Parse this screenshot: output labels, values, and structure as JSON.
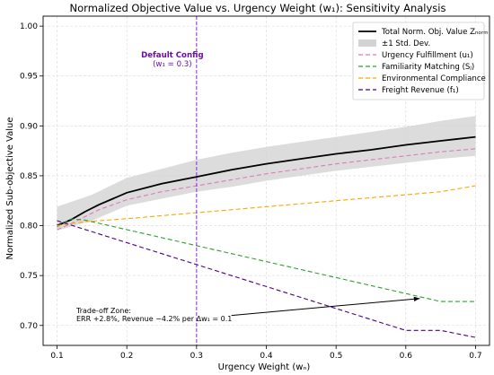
{
  "chart_data": {
    "type": "line",
    "title": "Normalized Objective Value vs. Urgency Weight (w₁): Sensitivity Analysis",
    "xlabel": "Urgency Weight (wₙ)",
    "ylabel": "Normalized Sub-objective Value",
    "xlim": [
      0.08,
      0.72
    ],
    "ylim": [
      0.68,
      1.01
    ],
    "x_ticks": [
      "0.1",
      "0.2",
      "0.3",
      "0.4",
      "0.5",
      "0.6",
      "0.7"
    ],
    "y_ticks": [
      "0.70",
      "0.75",
      "0.80",
      "0.85",
      "0.90",
      "0.95",
      "1.00"
    ],
    "grid": true,
    "legend_position": "top-right",
    "legend": [
      {
        "label": "Total Norm. Obj. Value Zₙₒᵣₘ",
        "style": "solid",
        "color": "#000000"
      },
      {
        "label": "±1 Std. Dev.",
        "style": "band",
        "color": "#d3d3d3"
      },
      {
        "label": "Urgency Fulfillment (u₁)",
        "style": "dashed",
        "color": "#e377c2"
      },
      {
        "label": "Familiarity Matching (Sⱼ)",
        "style": "dashed",
        "color": "#2ca02c"
      },
      {
        "label": "Environmental Compliance",
        "style": "dashed",
        "color": "#ffa500"
      },
      {
        "label": "Freight Revenue (f₁)",
        "style": "dashed",
        "color": "#4b0082"
      }
    ],
    "x": [
      0.1,
      0.12,
      0.14,
      0.16,
      0.18,
      0.2,
      0.25,
      0.3,
      0.35,
      0.4,
      0.45,
      0.5,
      0.55,
      0.6,
      0.65,
      0.7
    ],
    "series": [
      {
        "name": "Total Norm. Obj. Value",
        "color": "#000000",
        "style": "solid",
        "values": [
          0.8,
          0.806,
          0.814,
          0.821,
          0.827,
          0.833,
          0.842,
          0.849,
          0.856,
          0.862,
          0.867,
          0.872,
          0.876,
          0.881,
          0.885,
          0.889
        ]
      },
      {
        "name": "Urgency Fulfillment",
        "color": "#e377c2",
        "style": "dashed",
        "values": [
          0.796,
          0.802,
          0.809,
          0.816,
          0.821,
          0.826,
          0.834,
          0.84,
          0.846,
          0.852,
          0.857,
          0.862,
          0.866,
          0.87,
          0.874,
          0.877
        ]
      },
      {
        "name": "Familiarity Matching",
        "color": "#2ca02c",
        "style": "dashed",
        "values": [
          0.799,
          0.8068,
          0.8056,
          0.8024,
          0.7992,
          0.796,
          0.788,
          0.78,
          0.772,
          0.764,
          0.756,
          0.748,
          0.74,
          0.732,
          0.724,
          0.724
        ]
      },
      {
        "name": "Environmental Compliance",
        "color": "#ffa500",
        "style": "dashed",
        "values": [
          0.8,
          0.802,
          0.804,
          0.805,
          0.806,
          0.807,
          0.81,
          0.813,
          0.816,
          0.819,
          0.822,
          0.825,
          0.828,
          0.831,
          0.834,
          0.84
        ]
      },
      {
        "name": "Freight Revenue",
        "color": "#4b0082",
        "style": "dashed",
        "values": [
          0.805,
          0.8006,
          0.7962,
          0.7918,
          0.7874,
          0.783,
          0.772,
          0.761,
          0.75,
          0.739,
          0.728,
          0.717,
          0.706,
          0.695,
          0.695,
          0.688
        ]
      }
    ],
    "band": {
      "x": [
        0.1,
        0.15,
        0.2,
        0.25,
        0.3,
        0.35,
        0.4,
        0.45,
        0.5,
        0.55,
        0.6,
        0.65,
        0.7
      ],
      "upper": [
        0.819,
        0.831,
        0.848,
        0.857,
        0.866,
        0.873,
        0.879,
        0.884,
        0.889,
        0.894,
        0.899,
        0.905,
        0.91
      ],
      "lower": [
        0.795,
        0.805,
        0.82,
        0.827,
        0.834,
        0.839,
        0.845,
        0.85,
        0.855,
        0.859,
        0.863,
        0.867,
        0.87
      ]
    },
    "default_config": {
      "x": 0.3,
      "label": "Default Config",
      "sublabel": "(w₁ = 0.3)",
      "color": "#7b1fa2"
    },
    "annotation": {
      "line1": "Trade-off Zone:",
      "line2": "ERR +2.8%, Revenue −4.2% per Δw₁ = 0.1",
      "arrow_from": [
        0.35,
        0.71
      ],
      "arrow_to": [
        0.62,
        0.727
      ]
    }
  }
}
